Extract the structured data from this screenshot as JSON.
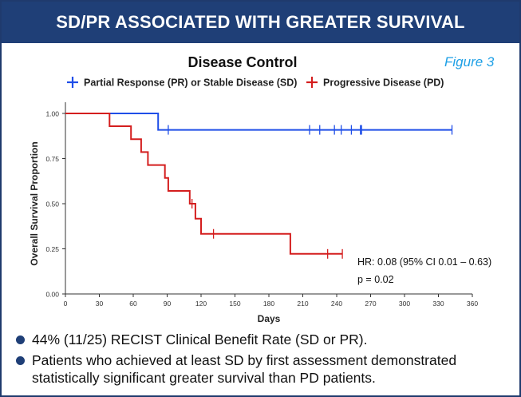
{
  "header": {
    "title": "SD/PR ASSOCIATED WITH GREATER SURVIVAL"
  },
  "figure_label": "Figure 3",
  "bullets": [
    "44% (11/25) RECIST Clinical Benefit Rate (SD or PR).",
    "Patients who achieved at least SD by first assessment demonstrated statistically significant greater survival than PD patients."
  ],
  "colors": {
    "banner": "#1f3f77",
    "pr_sd": "#1f4ee8",
    "pd": "#d41e1e",
    "figure_label": "#1ea0e6",
    "bullet": "#1f3f77"
  },
  "chart_data": {
    "type": "kaplan-meier",
    "title": "Disease Control",
    "xlabel": "Days",
    "ylabel": "Overall Survival Proportion",
    "xlim": [
      0,
      360
    ],
    "ylim": [
      0,
      1
    ],
    "xticks": [
      "0",
      "30",
      "60",
      "90",
      "120",
      "150",
      "180",
      "210",
      "240",
      "270",
      "300",
      "330",
      "360"
    ],
    "yticks": [
      "0.00",
      "0.25",
      "0.50",
      "0.75",
      "1.00"
    ],
    "legend_position": "top",
    "grid": false,
    "series": [
      {
        "name": "Partial Response (PR) or Stable Disease (SD)",
        "color": "#1f4ee8",
        "steps": [
          [
            0,
            1.0
          ],
          [
            82,
            1.0
          ],
          [
            82,
            0.909
          ],
          [
            342,
            0.909
          ]
        ],
        "censors": [
          [
            91,
            0.909
          ],
          [
            216,
            0.909
          ],
          [
            225,
            0.909
          ],
          [
            238,
            0.909
          ],
          [
            244,
            0.909
          ],
          [
            253,
            0.909
          ],
          [
            261,
            0.909
          ],
          [
            262,
            0.909
          ],
          [
            342,
            0.909
          ]
        ]
      },
      {
        "name": "Progressive Disease (PD)",
        "color": "#d41e1e",
        "steps": [
          [
            0,
            1.0
          ],
          [
            39,
            1.0
          ],
          [
            39,
            0.929
          ],
          [
            58,
            0.929
          ],
          [
            58,
            0.857
          ],
          [
            67,
            0.857
          ],
          [
            67,
            0.786
          ],
          [
            73,
            0.786
          ],
          [
            73,
            0.714
          ],
          [
            88,
            0.714
          ],
          [
            88,
            0.643
          ],
          [
            91,
            0.643
          ],
          [
            91,
            0.571
          ],
          [
            110,
            0.571
          ],
          [
            110,
            0.5
          ],
          [
            115,
            0.5
          ],
          [
            115,
            0.417
          ],
          [
            120,
            0.417
          ],
          [
            120,
            0.333
          ],
          [
            199,
            0.333
          ],
          [
            199,
            0.222
          ],
          [
            245,
            0.222
          ]
        ],
        "censors": [
          [
            112,
            0.5
          ],
          [
            131,
            0.333
          ],
          [
            232,
            0.222
          ],
          [
            245,
            0.222
          ]
        ]
      }
    ],
    "annotations": [
      "HR: 0.08 (95% CI 0.01 – 0.63)",
      "p = 0.02"
    ]
  }
}
